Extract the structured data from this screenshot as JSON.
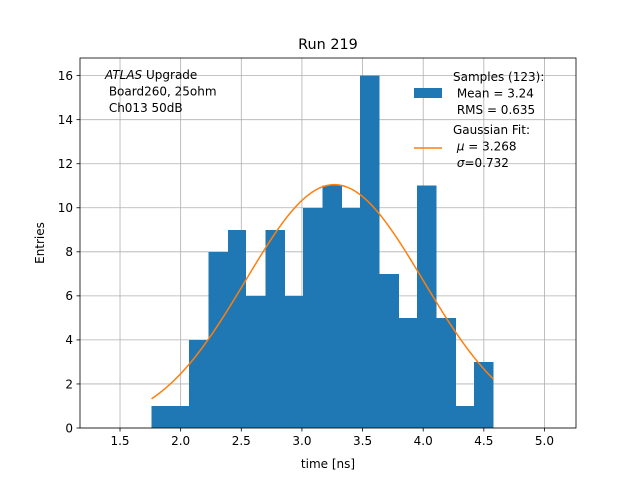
{
  "chart_data": {
    "type": "bar",
    "title": "Run 219",
    "xlabel": "time [ns]",
    "ylabel": "Entries",
    "xlim": [
      1.17,
      5.26
    ],
    "ylim": [
      0,
      16.8
    ],
    "grid": true,
    "xticks": [
      1.5,
      2.0,
      2.5,
      3.0,
      3.5,
      4.0,
      4.5,
      5.0
    ],
    "xtick_labels": [
      "1.5",
      "2.0",
      "2.5",
      "3.0",
      "3.5",
      "4.0",
      "4.5",
      "5.0"
    ],
    "yticks": [
      0,
      2,
      4,
      6,
      8,
      10,
      12,
      14,
      16
    ],
    "ytick_labels": [
      "0",
      "2",
      "4",
      "6",
      "8",
      "10",
      "12",
      "14",
      "16"
    ],
    "bin_edges": [
      1.76,
      1.92,
      2.07,
      2.23,
      2.39,
      2.54,
      2.7,
      2.86,
      3.01,
      3.17,
      3.33,
      3.48,
      3.64,
      3.8,
      3.95,
      4.11,
      4.27,
      4.42,
      4.58
    ],
    "counts": [
      1,
      1,
      4,
      8,
      9,
      6,
      9,
      6,
      10,
      11,
      10,
      16,
      7,
      5,
      11,
      5,
      1,
      3
    ],
    "bar_color": "#1f77b4",
    "fit": {
      "type": "gaussian",
      "mu": 3.268,
      "sigma": 0.732,
      "amplitude": 11.05,
      "x_range": [
        1.76,
        4.58
      ],
      "color": "#ff7f0e"
    },
    "annotation": {
      "lines": [
        {
          "italic": "ATLAS",
          "text": " Upgrade"
        },
        {
          "italic": "",
          "text": " Board260, 25ohm"
        },
        {
          "italic": "",
          "text": " Ch013 50dB"
        }
      ]
    },
    "legend": {
      "position": "top-right",
      "entries": [
        {
          "kind": "patch",
          "color": "#1f77b4",
          "lines": [
            {
              "italic": "",
              "text": "Samples (123):"
            },
            {
              "italic": "",
              "text": " Mean = 3.24"
            },
            {
              "italic": "",
              "text": " RMS = 0.635"
            }
          ]
        },
        {
          "kind": "line",
          "color": "#ff7f0e",
          "lines": [
            {
              "italic": "",
              "text": "Gaussian Fit:"
            },
            {
              "italic": "μ",
              "text": " = 3.268"
            },
            {
              "italic": "σ",
              "text": "=0.732"
            }
          ]
        }
      ]
    }
  }
}
